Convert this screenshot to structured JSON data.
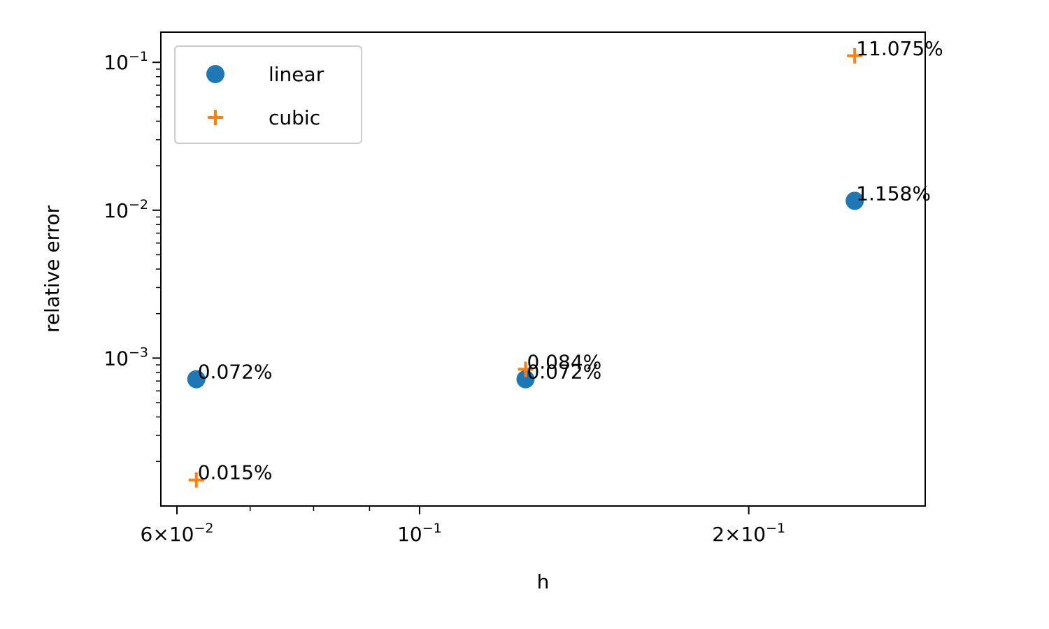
{
  "chart_data": {
    "type": "scatter",
    "xscale": "log",
    "yscale": "log",
    "xlabel": "h",
    "ylabel": "relative error",
    "xlim": [
      0.058,
      0.29
    ],
    "ylim": [
      0.0001,
      0.16
    ],
    "x_ticks": [
      {
        "value": 0.06,
        "base": "6×10",
        "exp": "−2"
      },
      {
        "value": 0.1,
        "base": "10",
        "exp": "−1"
      },
      {
        "value": 0.2,
        "base": "2×10",
        "exp": "−1"
      }
    ],
    "y_ticks": [
      {
        "value": 0.001,
        "base": "10",
        "exp": "−3"
      },
      {
        "value": 0.01,
        "base": "10",
        "exp": "−2"
      },
      {
        "value": 0.1,
        "base": "10",
        "exp": "−1"
      }
    ],
    "legend_position": "upper-left",
    "grid": false,
    "series": [
      {
        "name": "linear",
        "marker": "circle",
        "color": "#1f77b4",
        "points": [
          {
            "x": 0.0625,
            "y": 0.00072,
            "label": "0.072%"
          },
          {
            "x": 0.125,
            "y": 0.00072,
            "label": "0.072%"
          },
          {
            "x": 0.25,
            "y": 0.01158,
            "label": "1.158%"
          }
        ]
      },
      {
        "name": "cubic",
        "marker": "plus",
        "color": "#ff7f0e",
        "points": [
          {
            "x": 0.0625,
            "y": 0.00015,
            "label": "0.015%"
          },
          {
            "x": 0.125,
            "y": 0.00084,
            "label": "0.084%"
          },
          {
            "x": 0.25,
            "y": 0.11075,
            "label": "11.075%"
          }
        ]
      }
    ]
  }
}
